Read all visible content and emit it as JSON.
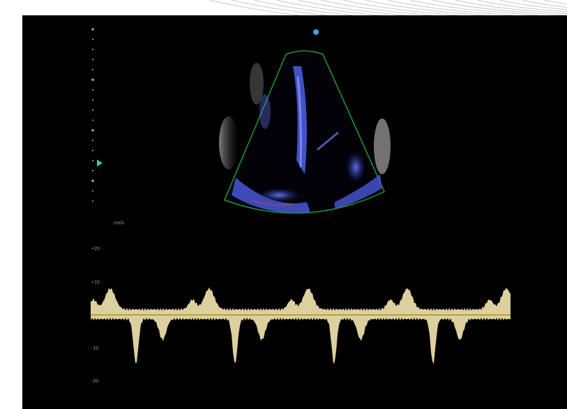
{
  "scale": {
    "unit": "cm/s",
    "labels": [
      "+20",
      "+10",
      "-10",
      "-20"
    ]
  }
}
